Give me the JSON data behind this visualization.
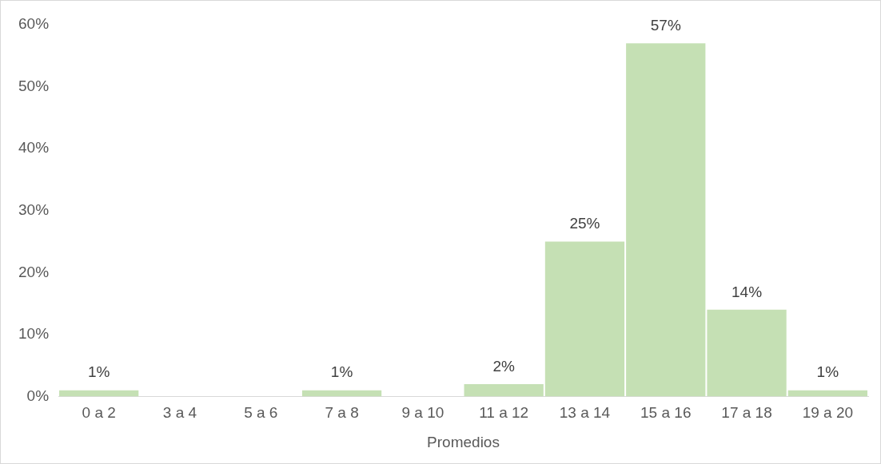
{
  "chart_data": {
    "type": "bar",
    "xlabel": "Promedios",
    "categories": [
      "0 a 2",
      "3 a 4",
      "5 a 6",
      "7 a 8",
      "9 a 10",
      "11 a 12",
      "13 a 14",
      "15 a 16",
      "17 a 18",
      "19 a 20"
    ],
    "values": [
      1,
      0,
      0,
      1,
      0,
      2,
      25,
      57,
      14,
      1
    ],
    "value_labels": [
      "1%",
      null,
      null,
      "1%",
      null,
      "2%",
      "25%",
      "57%",
      "14%",
      "1%"
    ],
    "color": "#c5e0b4",
    "ylim": [
      0,
      60
    ],
    "yticks": [
      {
        "value": 0,
        "label": "0%"
      },
      {
        "value": 10,
        "label": "10%"
      },
      {
        "value": 20,
        "label": "20%"
      },
      {
        "value": 30,
        "label": "30%"
      },
      {
        "value": 40,
        "label": "40%"
      },
      {
        "value": 50,
        "label": "50%"
      },
      {
        "value": 60,
        "label": "60%"
      }
    ],
    "grid": false,
    "legend": false
  }
}
